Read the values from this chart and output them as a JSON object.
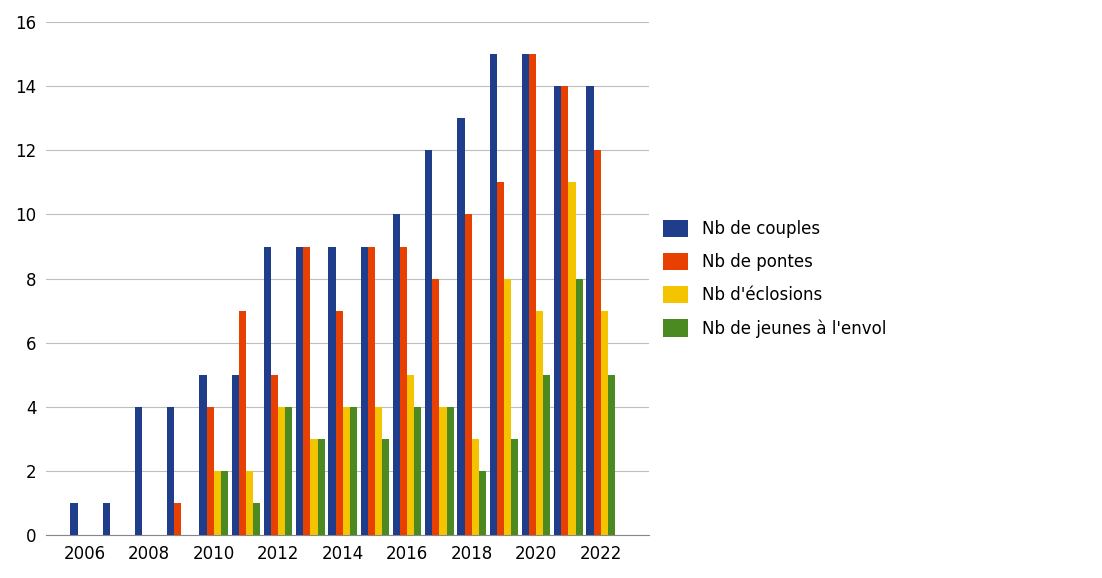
{
  "years": [
    2006,
    2007,
    2008,
    2009,
    2010,
    2011,
    2012,
    2013,
    2014,
    2015,
    2016,
    2017,
    2018,
    2019,
    2020,
    2021,
    2022
  ],
  "nb_couples": [
    1,
    1,
    4,
    4,
    5,
    5,
    9,
    9,
    9,
    9,
    10,
    12,
    13,
    15,
    15,
    14,
    14
  ],
  "nb_pontes": [
    0,
    0,
    0,
    1,
    4,
    7,
    5,
    9,
    7,
    9,
    9,
    8,
    10,
    11,
    15,
    14,
    12
  ],
  "nb_eclosions": [
    0,
    0,
    0,
    0,
    2,
    2,
    4,
    3,
    4,
    4,
    5,
    4,
    3,
    8,
    7,
    11,
    7
  ],
  "nb_jeunes_envol": [
    0,
    0,
    0,
    0,
    2,
    1,
    4,
    3,
    4,
    3,
    4,
    4,
    2,
    3,
    5,
    8,
    5
  ],
  "colors": {
    "nb_couples": "#1F3D8A",
    "nb_pontes": "#E84000",
    "nb_eclosions": "#F5C400",
    "nb_jeunes_envol": "#4A8A20"
  },
  "legend_labels": [
    "Nb de couples",
    "Nb de pontes",
    "Nb d'éclosions",
    "Nb de jeunes à l'envol"
  ],
  "ylim": [
    0,
    16
  ],
  "yticks": [
    0,
    2,
    4,
    6,
    8,
    10,
    12,
    14,
    16
  ],
  "xticks": [
    2006,
    2008,
    2010,
    2012,
    2014,
    2016,
    2018,
    2020,
    2022
  ],
  "background_color": "#ffffff",
  "grid_color": "#bfbfbf",
  "bar_width": 0.22,
  "xlim_left": 2004.8,
  "xlim_right": 2023.5
}
